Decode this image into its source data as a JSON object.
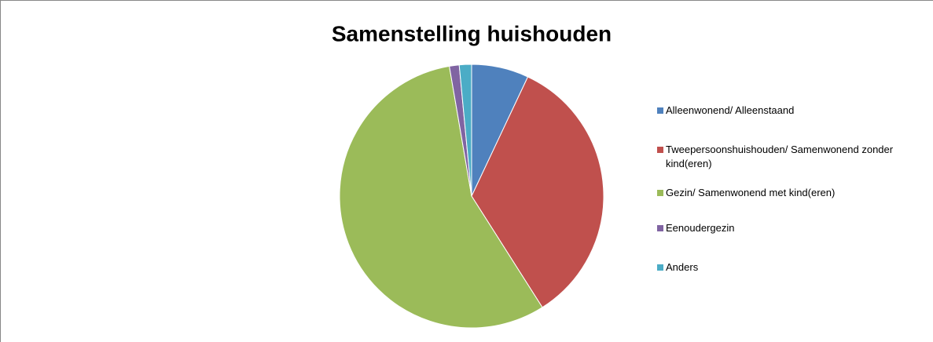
{
  "chart_data": {
    "type": "pie",
    "title": "Samenstelling huishouden",
    "categories": [
      "Alleenwonend/ Alleenstaand",
      "Tweepersoonshuishouden/ Samenwonend zonder kind(eren)",
      "Gezin/ Samenwonend met kind(eren)",
      "Eenoudergezin",
      "Anders"
    ],
    "values": [
      7,
      34,
      56.3,
      1.2,
      1.5
    ],
    "colors": [
      "#4f81bd",
      "#c0504d",
      "#9bbb59",
      "#8064a2",
      "#4bacc6"
    ],
    "legend": "right"
  }
}
